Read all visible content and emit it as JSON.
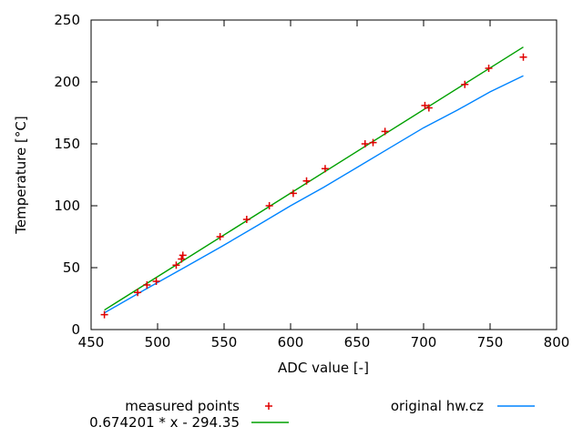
{
  "page": {
    "background": "#ffffff",
    "border_color": "#000000",
    "text_color": "#000000"
  },
  "chart_data": {
    "type": "scatter",
    "title": "",
    "xlabel": "ADC value [-]",
    "ylabel": "Temperature [°C]",
    "xlim": [
      450,
      800
    ],
    "ylim": [
      0,
      250
    ],
    "xticks": [
      450,
      500,
      550,
      600,
      650,
      700,
      750,
      800
    ],
    "yticks": [
      0,
      50,
      100,
      150,
      200,
      250
    ],
    "grid": false,
    "legend_position": "below-plot",
    "series": [
      {
        "name": "measured points",
        "type": "scatter",
        "marker": "plus",
        "color": "#e00000",
        "points": [
          [
            460,
            12
          ],
          [
            485,
            30
          ],
          [
            492,
            36
          ],
          [
            499,
            39
          ],
          [
            514,
            52
          ],
          [
            518,
            57
          ],
          [
            519,
            60
          ],
          [
            547,
            75
          ],
          [
            567,
            89
          ],
          [
            584,
            100
          ],
          [
            602,
            110
          ],
          [
            612,
            120
          ],
          [
            626,
            130
          ],
          [
            656,
            150
          ],
          [
            662,
            151
          ],
          [
            671,
            160
          ],
          [
            701,
            181
          ],
          [
            704,
            179
          ],
          [
            731,
            198
          ],
          [
            749,
            211
          ],
          [
            775,
            220
          ]
        ]
      },
      {
        "name": "0.674201 * x - 294.35",
        "type": "line",
        "color": "#00a000",
        "fit": {
          "slope": 0.674201,
          "intercept": -294.35,
          "x_range": [
            460,
            775
          ]
        }
      },
      {
        "name": "original hw.cz",
        "type": "line",
        "color": "#0084ff",
        "points": [
          [
            460,
            13.5
          ],
          [
            490,
            32
          ],
          [
            520,
            50
          ],
          [
            548,
            67
          ],
          [
            575,
            84
          ],
          [
            600,
            100
          ],
          [
            625,
            115
          ],
          [
            650,
            131
          ],
          [
            675,
            147
          ],
          [
            700,
            163
          ],
          [
            725,
            177
          ],
          [
            750,
            192
          ],
          [
            775,
            205
          ]
        ]
      }
    ]
  }
}
